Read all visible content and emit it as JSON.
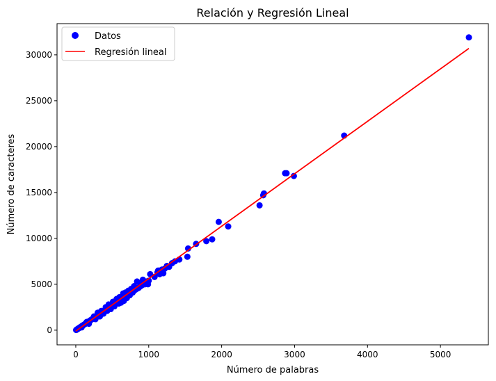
{
  "chart_data": {
    "type": "scatter",
    "title": "Relación y Regresión Lineal",
    "xlabel": "Número de palabras",
    "ylabel": "Número de caracteres",
    "xlim": [
      -257,
      5657
    ],
    "ylim": [
      -1600,
      33400
    ],
    "xticks": [
      0,
      1000,
      2000,
      3000,
      4000,
      5000
    ],
    "yticks": [
      0,
      5000,
      10000,
      15000,
      20000,
      25000,
      30000
    ],
    "grid": false,
    "legend_position": "top-left",
    "series": [
      {
        "name": "Datos",
        "kind": "scatter",
        "color": "#0000ff",
        "points": [
          [
            5,
            20
          ],
          [
            10,
            40
          ],
          [
            15,
            75
          ],
          [
            20,
            100
          ],
          [
            25,
            120
          ],
          [
            30,
            160
          ],
          [
            35,
            180
          ],
          [
            40,
            210
          ],
          [
            45,
            230
          ],
          [
            50,
            260
          ],
          [
            55,
            290
          ],
          [
            60,
            320
          ],
          [
            65,
            340
          ],
          [
            70,
            370
          ],
          [
            75,
            400
          ],
          [
            80,
            420
          ],
          [
            85,
            450
          ],
          [
            90,
            480
          ],
          [
            95,
            500
          ],
          [
            100,
            530
          ],
          [
            110,
            580
          ],
          [
            120,
            640
          ],
          [
            130,
            690
          ],
          [
            140,
            750
          ],
          [
            150,
            800
          ],
          [
            160,
            850
          ],
          [
            170,
            910
          ],
          [
            180,
            960
          ],
          [
            190,
            1010
          ],
          [
            200,
            1070
          ],
          [
            210,
            1120
          ],
          [
            220,
            1180
          ],
          [
            230,
            1230
          ],
          [
            240,
            1280
          ],
          [
            250,
            1340
          ],
          [
            260,
            1390
          ],
          [
            270,
            1440
          ],
          [
            280,
            1500
          ],
          [
            290,
            1550
          ],
          [
            300,
            1610
          ],
          [
            310,
            1660
          ],
          [
            320,
            1720
          ],
          [
            330,
            1770
          ],
          [
            340,
            1820
          ],
          [
            350,
            1880
          ],
          [
            360,
            1930
          ],
          [
            370,
            1990
          ],
          [
            380,
            2040
          ],
          [
            390,
            2090
          ],
          [
            400,
            2150
          ],
          [
            420,
            2260
          ],
          [
            440,
            2360
          ],
          [
            460,
            2470
          ],
          [
            480,
            2580
          ],
          [
            500,
            2690
          ],
          [
            520,
            2800
          ],
          [
            540,
            2900
          ],
          [
            560,
            3010
          ],
          [
            580,
            3120
          ],
          [
            600,
            3230
          ],
          [
            620,
            3340
          ],
          [
            640,
            3440
          ],
          [
            660,
            3550
          ],
          [
            680,
            3660
          ],
          [
            700,
            3770
          ],
          [
            720,
            3880
          ],
          [
            740,
            3980
          ],
          [
            760,
            4090
          ],
          [
            780,
            4200
          ],
          [
            800,
            4310
          ],
          [
            820,
            4420
          ],
          [
            840,
            4520
          ],
          [
            860,
            4630
          ],
          [
            880,
            4740
          ],
          [
            900,
            4850
          ],
          [
            920,
            4960
          ],
          [
            940,
            5060
          ],
          [
            960,
            5170
          ],
          [
            980,
            5280
          ],
          [
            1000,
            5390
          ],
          [
            80,
            300
          ],
          [
            150,
            900
          ],
          [
            180,
            700
          ],
          [
            250,
            1500
          ],
          [
            270,
            1200
          ],
          [
            300,
            1900
          ],
          [
            330,
            1500
          ],
          [
            350,
            2100
          ],
          [
            380,
            1800
          ],
          [
            410,
            2500
          ],
          [
            430,
            2100
          ],
          [
            450,
            2800
          ],
          [
            480,
            2300
          ],
          [
            510,
            3100
          ],
          [
            530,
            2600
          ],
          [
            560,
            3400
          ],
          [
            590,
            2900
          ],
          [
            600,
            3600
          ],
          [
            620,
            3000
          ],
          [
            650,
            4000
          ],
          [
            660,
            3200
          ],
          [
            680,
            4100
          ],
          [
            700,
            3500
          ],
          [
            720,
            4300
          ],
          [
            740,
            3800
          ],
          [
            760,
            4500
          ],
          [
            780,
            4100
          ],
          [
            800,
            4800
          ],
          [
            820,
            4500
          ],
          [
            840,
            5300
          ],
          [
            860,
            4600
          ],
          [
            880,
            5100
          ],
          [
            900,
            5200
          ],
          [
            920,
            5500
          ],
          [
            950,
            5000
          ],
          [
            970,
            5300
          ],
          [
            990,
            5000
          ],
          [
            1020,
            6100
          ],
          [
            1080,
            5800
          ],
          [
            1120,
            6300
          ],
          [
            1130,
            6500
          ],
          [
            1150,
            6100
          ],
          [
            1180,
            6600
          ],
          [
            1200,
            6200
          ],
          [
            1220,
            6700
          ],
          [
            1250,
            7000
          ],
          [
            1280,
            6900
          ],
          [
            1320,
            7300
          ],
          [
            1360,
            7500
          ],
          [
            1420,
            7700
          ],
          [
            1530,
            8000
          ],
          [
            1540,
            8900
          ],
          [
            1650,
            9400
          ],
          [
            1790,
            9700
          ],
          [
            1870,
            9900
          ],
          [
            1960,
            11800
          ],
          [
            2090,
            11300
          ],
          [
            2520,
            13600
          ],
          [
            2570,
            14700
          ],
          [
            2580,
            14900
          ],
          [
            2870,
            17100
          ],
          [
            2890,
            17100
          ],
          [
            2990,
            16800
          ],
          [
            3680,
            21200
          ],
          [
            5390,
            31900
          ]
        ]
      },
      {
        "name": "Regresión lineal",
        "kind": "line",
        "color": "#ff0000",
        "x": [
          0,
          5390
        ],
        "y": [
          -100,
          30700
        ]
      }
    ]
  }
}
